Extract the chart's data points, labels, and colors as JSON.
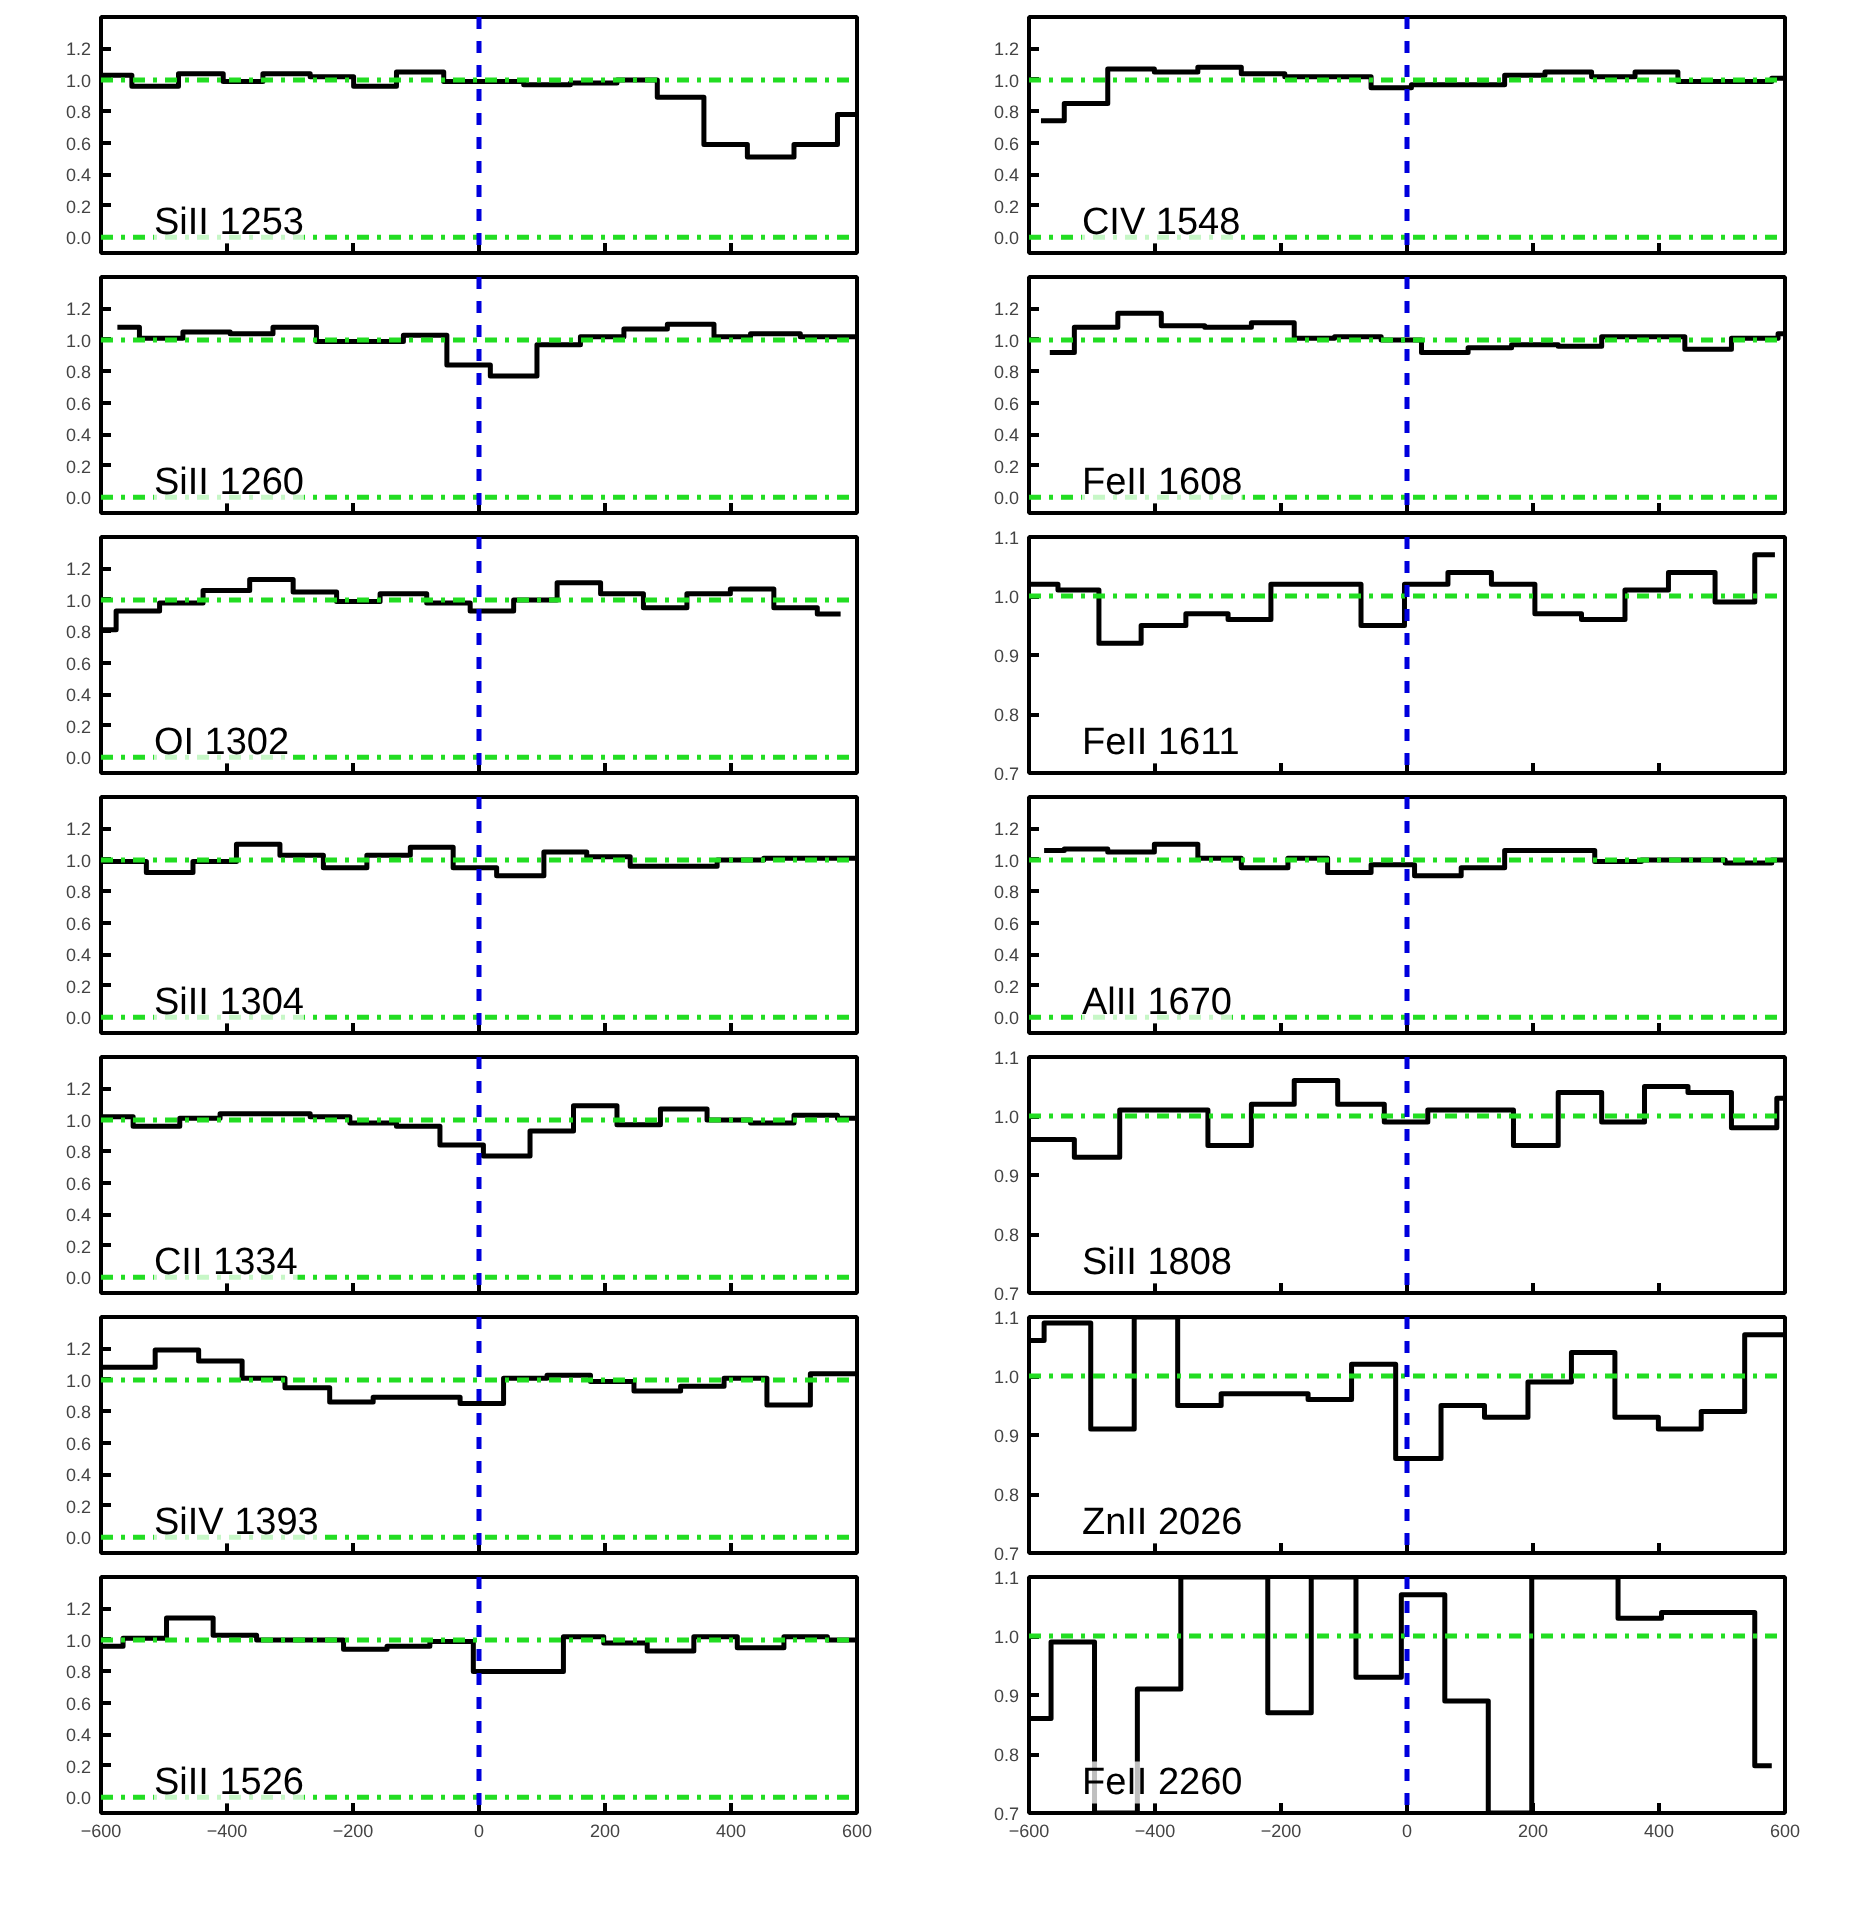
{
  "chart_data": [
    {
      "type": "step",
      "annotations": [
        "SiII 1253"
      ],
      "tick_labels": "y",
      "x": [
        -600,
        -551,
        -477,
        -406,
        -343,
        -268,
        -199,
        -131,
        -56,
        71,
        145,
        219,
        283,
        357,
        426,
        500,
        569,
        600
      ],
      "values": [
        1.03,
        0.96,
        1.04,
        0.99,
        1.04,
        1.02,
        0.96,
        1.05,
        0.99,
        0.97,
        0.98,
        1.0,
        0.89,
        0.59,
        0.51,
        0.59,
        0.78,
        0.78
      ],
      "color": "#000000",
      "xlim": [
        -600,
        600
      ],
      "xticks": [
        -600,
        -400,
        -200,
        0,
        200,
        400,
        600
      ],
      "ylim": [
        -0.1,
        1.4
      ],
      "yticks": [
        {
          "value": 0,
          "label": "0.0"
        },
        {
          "value": 0.2,
          "label": "0.2"
        },
        {
          "value": 0.4,
          "label": "0.4"
        },
        {
          "value": 0.6,
          "label": "0.6"
        },
        {
          "value": 0.8,
          "label": "0.8"
        },
        {
          "value": 1,
          "label": "1.0"
        },
        {
          "value": 1.2,
          "label": "1.2"
        }
      ],
      "ref_lines": [
        {
          "axis": "y",
          "value": 0,
          "color": "#22dd22",
          "line_style": "dashdot"
        },
        {
          "axis": "y",
          "value": 1,
          "color": "#22dd22",
          "line_style": "dashdot"
        },
        {
          "axis": "x",
          "value": 0,
          "color": "#0000dd",
          "line_style": "dashed"
        }
      ]
    },
    {
      "type": "step",
      "annotations": [
        "CIV 1548"
      ],
      "tick_labels": "y",
      "x": [
        -581,
        -544,
        -475,
        -401,
        -332,
        -263,
        -194,
        -57,
        7,
        155,
        219,
        293,
        362,
        430,
        579,
        600
      ],
      "values": [
        0.74,
        0.85,
        1.07,
        1.05,
        1.08,
        1.04,
        1.02,
        0.95,
        0.97,
        1.03,
        1.05,
        1.02,
        1.05,
        0.99,
        1.01,
        1.01
      ],
      "color": "#000000",
      "xlim": [
        -600,
        600
      ],
      "xticks": [
        -600,
        -400,
        -200,
        0,
        200,
        400,
        600
      ],
      "ylim": [
        -0.1,
        1.4
      ],
      "yticks": [
        {
          "value": 0,
          "label": "0.0"
        },
        {
          "value": 0.2,
          "label": "0.2"
        },
        {
          "value": 0.4,
          "label": "0.4"
        },
        {
          "value": 0.6,
          "label": "0.6"
        },
        {
          "value": 0.8,
          "label": "0.8"
        },
        {
          "value": 1,
          "label": "1.0"
        },
        {
          "value": 1.2,
          "label": "1.2"
        }
      ],
      "ref_lines": [
        {
          "axis": "y",
          "value": 0,
          "color": "#22dd22",
          "line_style": "dashdot"
        },
        {
          "axis": "y",
          "value": 1,
          "color": "#22dd22",
          "line_style": "dashdot"
        },
        {
          "axis": "x",
          "value": 0,
          "color": "#0000dd",
          "line_style": "dashed"
        }
      ]
    },
    {
      "type": "step",
      "annotations": [
        "SiII 1260"
      ],
      "tick_labels": "y",
      "x": [
        -574,
        -539,
        -470,
        -395,
        -327,
        -258,
        -120,
        -51,
        18,
        92,
        161,
        230,
        299,
        373,
        431,
        510,
        600
      ],
      "values": [
        1.08,
        1.01,
        1.05,
        1.04,
        1.08,
        0.99,
        1.03,
        0.84,
        0.77,
        0.97,
        1.02,
        1.07,
        1.1,
        1.02,
        1.04,
        1.02,
        1.02
      ],
      "color": "#000000",
      "xlim": [
        -600,
        600
      ],
      "xticks": [
        -600,
        -400,
        -200,
        0,
        200,
        400,
        600
      ],
      "ylim": [
        -0.1,
        1.4
      ],
      "yticks": [
        {
          "value": 0,
          "label": "0.0"
        },
        {
          "value": 0.2,
          "label": "0.2"
        },
        {
          "value": 0.4,
          "label": "0.4"
        },
        {
          "value": 0.6,
          "label": "0.6"
        },
        {
          "value": 0.8,
          "label": "0.8"
        },
        {
          "value": 1,
          "label": "1.0"
        },
        {
          "value": 1.2,
          "label": "1.2"
        }
      ],
      "ref_lines": [
        {
          "axis": "y",
          "value": 0,
          "color": "#22dd22",
          "line_style": "dashdot"
        },
        {
          "axis": "y",
          "value": 1,
          "color": "#22dd22",
          "line_style": "dashdot"
        },
        {
          "axis": "x",
          "value": 0,
          "color": "#0000dd",
          "line_style": "dashed"
        }
      ]
    },
    {
      "type": "step",
      "annotations": [
        "FeII 1608"
      ],
      "tick_labels": "y",
      "x": [
        -567,
        -528,
        -459,
        -390,
        -321,
        -247,
        -179,
        -115,
        -41,
        23,
        97,
        166,
        240,
        309,
        441,
        515,
        589,
        600
      ],
      "values": [
        0.92,
        1.08,
        1.17,
        1.09,
        1.08,
        1.11,
        1.01,
        1.02,
        1.0,
        0.92,
        0.95,
        0.97,
        0.96,
        1.02,
        0.94,
        1.01,
        1.04,
        1.04
      ],
      "color": "#000000",
      "xlim": [
        -600,
        600
      ],
      "xticks": [
        -600,
        -400,
        -200,
        0,
        200,
        400,
        600
      ],
      "ylim": [
        -0.1,
        1.4
      ],
      "yticks": [
        {
          "value": 0,
          "label": "0.0"
        },
        {
          "value": 0.2,
          "label": "0.2"
        },
        {
          "value": 0.4,
          "label": "0.4"
        },
        {
          "value": 0.6,
          "label": "0.6"
        },
        {
          "value": 0.8,
          "label": "0.8"
        },
        {
          "value": 1,
          "label": "1.0"
        },
        {
          "value": 1.2,
          "label": "1.2"
        }
      ],
      "ref_lines": [
        {
          "axis": "y",
          "value": 0,
          "color": "#22dd22",
          "line_style": "dashdot"
        },
        {
          "axis": "y",
          "value": 1,
          "color": "#22dd22",
          "line_style": "dashdot"
        },
        {
          "axis": "x",
          "value": 0,
          "color": "#0000dd",
          "line_style": "dashed"
        }
      ]
    },
    {
      "type": "step",
      "annotations": [
        "OI 1302"
      ],
      "tick_labels": "y",
      "x": [
        -600,
        -576,
        -507,
        -438,
        -364,
        -295,
        -226,
        -157,
        -83,
        -14,
        55,
        124,
        193,
        261,
        330,
        399,
        468,
        537,
        574
      ],
      "values": [
        0.81,
        0.93,
        0.98,
        1.06,
        1.13,
        1.05,
        0.99,
        1.04,
        0.98,
        0.93,
        1.0,
        1.11,
        1.04,
        0.95,
        1.04,
        1.07,
        0.95,
        0.91,
        0.91
      ],
      "color": "#000000",
      "xlim": [
        -600,
        600
      ],
      "xticks": [
        -600,
        -400,
        -200,
        0,
        200,
        400,
        600
      ],
      "ylim": [
        -0.1,
        1.4
      ],
      "yticks": [
        {
          "value": 0,
          "label": "0.0"
        },
        {
          "value": 0.2,
          "label": "0.2"
        },
        {
          "value": 0.4,
          "label": "0.4"
        },
        {
          "value": 0.6,
          "label": "0.6"
        },
        {
          "value": 0.8,
          "label": "0.8"
        },
        {
          "value": 1,
          "label": "1.0"
        },
        {
          "value": 1.2,
          "label": "1.2"
        }
      ],
      "ref_lines": [
        {
          "axis": "y",
          "value": 0,
          "color": "#22dd22",
          "line_style": "dashdot"
        },
        {
          "axis": "y",
          "value": 1,
          "color": "#22dd22",
          "line_style": "dashdot"
        },
        {
          "axis": "x",
          "value": 0,
          "color": "#0000dd",
          "line_style": "dashed"
        }
      ]
    },
    {
      "type": "step",
      "annotations": [
        "FeII 1611"
      ],
      "tick_labels": "y",
      "x": [
        -600,
        -554,
        -489,
        -422,
        -351,
        -284,
        -216,
        -73,
        -4,
        65,
        134,
        203,
        277,
        346,
        415,
        489,
        552,
        584
      ],
      "values": [
        1.02,
        1.01,
        0.92,
        0.95,
        0.97,
        0.96,
        1.02,
        0.95,
        1.02,
        1.04,
        1.02,
        0.97,
        0.96,
        1.01,
        1.04,
        0.99,
        1.07,
        1.07
      ],
      "color": "#000000",
      "xlim": [
        -600,
        600
      ],
      "xticks": [
        -600,
        -400,
        -200,
        0,
        200,
        400,
        600
      ],
      "ylim": [
        0.7,
        1.1
      ],
      "yticks": [
        {
          "value": 0.7,
          "label": "0.7"
        },
        {
          "value": 0.8,
          "label": "0.8"
        },
        {
          "value": 0.9,
          "label": "0.9"
        },
        {
          "value": 1,
          "label": "1.0"
        },
        {
          "value": 1.1,
          "label": "1.1"
        }
      ],
      "ref_lines": [
        {
          "axis": "y",
          "value": 1,
          "color": "#22dd22",
          "line_style": "dashdot"
        },
        {
          "axis": "x",
          "value": 0,
          "color": "#0000dd",
          "line_style": "dashed"
        }
      ]
    },
    {
      "type": "step",
      "annotations": [
        "SiII 1304"
      ],
      "tick_labels": "y",
      "x": [
        -600,
        -528,
        -454,
        -385,
        -316,
        -247,
        -178,
        -109,
        -41,
        28,
        103,
        171,
        240,
        378,
        452,
        600
      ],
      "values": [
        0.99,
        0.92,
        0.99,
        1.1,
        1.03,
        0.95,
        1.03,
        1.08,
        0.95,
        0.9,
        1.05,
        1.02,
        0.96,
        1.0,
        1.01,
        1.01
      ],
      "color": "#000000",
      "xlim": [
        -600,
        600
      ],
      "xticks": [
        -600,
        -400,
        -200,
        0,
        200,
        400,
        600
      ],
      "ylim": [
        -0.1,
        1.4
      ],
      "yticks": [
        {
          "value": 0,
          "label": "0.0"
        },
        {
          "value": 0.2,
          "label": "0.2"
        },
        {
          "value": 0.4,
          "label": "0.4"
        },
        {
          "value": 0.6,
          "label": "0.6"
        },
        {
          "value": 0.8,
          "label": "0.8"
        },
        {
          "value": 1,
          "label": "1.0"
        },
        {
          "value": 1.2,
          "label": "1.2"
        }
      ],
      "ref_lines": [
        {
          "axis": "y",
          "value": 0,
          "color": "#22dd22",
          "line_style": "dashdot"
        },
        {
          "axis": "y",
          "value": 1,
          "color": "#22dd22",
          "line_style": "dashdot"
        },
        {
          "axis": "x",
          "value": 0,
          "color": "#0000dd",
          "line_style": "dashed"
        }
      ]
    },
    {
      "type": "step",
      "annotations": [
        "AlII 1670"
      ],
      "tick_labels": "y",
      "x": [
        -576,
        -544,
        -475,
        -401,
        -332,
        -263,
        -189,
        -126,
        -57,
        12,
        86,
        155,
        298,
        372,
        436,
        505,
        579,
        600
      ],
      "values": [
        1.06,
        1.07,
        1.05,
        1.1,
        1.01,
        0.95,
        1.01,
        0.92,
        0.97,
        0.9,
        0.95,
        1.06,
        0.99,
        1.0,
        1.0,
        0.98,
        1.0,
        1.0
      ],
      "color": "#000000",
      "xlim": [
        -600,
        600
      ],
      "xticks": [
        -600,
        -400,
        -200,
        0,
        200,
        400,
        600
      ],
      "ylim": [
        -0.1,
        1.4
      ],
      "yticks": [
        {
          "value": 0,
          "label": "0.0"
        },
        {
          "value": 0.2,
          "label": "0.2"
        },
        {
          "value": 0.4,
          "label": "0.4"
        },
        {
          "value": 0.6,
          "label": "0.6"
        },
        {
          "value": 0.8,
          "label": "0.8"
        },
        {
          "value": 1,
          "label": "1.0"
        },
        {
          "value": 1.2,
          "label": "1.2"
        }
      ],
      "ref_lines": [
        {
          "axis": "y",
          "value": 0,
          "color": "#22dd22",
          "line_style": "dashdot"
        },
        {
          "axis": "y",
          "value": 1,
          "color": "#22dd22",
          "line_style": "dashdot"
        },
        {
          "axis": "x",
          "value": 0,
          "color": "#0000dd",
          "line_style": "dashed"
        }
      ]
    },
    {
      "type": "step",
      "annotations": [
        "CII 1334"
      ],
      "tick_labels": "y",
      "x": [
        -600,
        -549,
        -475,
        -411,
        -268,
        -205,
        -131,
        -62,
        7,
        81,
        150,
        219,
        288,
        362,
        431,
        500,
        569,
        600
      ],
      "values": [
        1.02,
        0.96,
        1.01,
        1.04,
        1.02,
        0.98,
        0.96,
        0.84,
        0.77,
        0.93,
        1.09,
        0.97,
        1.07,
        1.0,
        0.98,
        1.03,
        1.01,
        1.01
      ],
      "color": "#000000",
      "xlim": [
        -600,
        600
      ],
      "xticks": [
        -600,
        -400,
        -200,
        0,
        200,
        400,
        600
      ],
      "ylim": [
        -0.1,
        1.4
      ],
      "yticks": [
        {
          "value": 0,
          "label": "0.0"
        },
        {
          "value": 0.2,
          "label": "0.2"
        },
        {
          "value": 0.4,
          "label": "0.4"
        },
        {
          "value": 0.6,
          "label": "0.6"
        },
        {
          "value": 0.8,
          "label": "0.8"
        },
        {
          "value": 1,
          "label": "1.0"
        },
        {
          "value": 1.2,
          "label": "1.2"
        }
      ],
      "ref_lines": [
        {
          "axis": "y",
          "value": 0,
          "color": "#22dd22",
          "line_style": "dashdot"
        },
        {
          "axis": "y",
          "value": 1,
          "color": "#22dd22",
          "line_style": "dashdot"
        },
        {
          "axis": "x",
          "value": 0,
          "color": "#0000dd",
          "line_style": "dashed"
        }
      ]
    },
    {
      "type": "step",
      "annotations": [
        "SiII 1808"
      ],
      "tick_labels": "y",
      "x": [
        -600,
        -528,
        -456,
        -316,
        -247,
        -179,
        -110,
        -36,
        33,
        102,
        169,
        240,
        309,
        377,
        446,
        515,
        587,
        600
      ],
      "values": [
        0.96,
        0.93,
        1.01,
        0.95,
        1.02,
        1.06,
        1.02,
        0.99,
        1.01,
        1.01,
        0.95,
        1.04,
        0.99,
        1.05,
        1.04,
        0.98,
        1.03,
        1.03
      ],
      "color": "#000000",
      "xlim": [
        -600,
        600
      ],
      "xticks": [
        -600,
        -400,
        -200,
        0,
        200,
        400,
        600
      ],
      "ylim": [
        0.7,
        1.1
      ],
      "yticks": [
        {
          "value": 0.7,
          "label": "0.7"
        },
        {
          "value": 0.8,
          "label": "0.8"
        },
        {
          "value": 0.9,
          "label": "0.9"
        },
        {
          "value": 1,
          "label": "1.0"
        },
        {
          "value": 1.1,
          "label": "1.1"
        }
      ],
      "ref_lines": [
        {
          "axis": "y",
          "value": 1,
          "color": "#22dd22",
          "line_style": "dashdot"
        },
        {
          "axis": "x",
          "value": 0,
          "color": "#0000dd",
          "line_style": "dashed"
        }
      ]
    },
    {
      "type": "step",
      "annotations": [
        "SiIV 1393"
      ],
      "tick_labels": "y",
      "x": [
        -600,
        -514,
        -445,
        -376,
        -308,
        -237,
        -168,
        -30,
        39,
        108,
        177,
        246,
        320,
        389,
        457,
        526,
        600
      ],
      "values": [
        1.08,
        1.19,
        1.12,
        1.01,
        0.95,
        0.86,
        0.89,
        0.85,
        1.01,
        1.03,
        0.99,
        0.93,
        0.96,
        1.01,
        0.84,
        1.04,
        1.04
      ],
      "color": "#000000",
      "xlim": [
        -600,
        600
      ],
      "xticks": [
        -600,
        -400,
        -200,
        0,
        200,
        400,
        600
      ],
      "ylim": [
        -0.1,
        1.4
      ],
      "yticks": [
        {
          "value": 0,
          "label": "0.0"
        },
        {
          "value": 0.2,
          "label": "0.2"
        },
        {
          "value": 0.4,
          "label": "0.4"
        },
        {
          "value": 0.6,
          "label": "0.6"
        },
        {
          "value": 0.8,
          "label": "0.8"
        },
        {
          "value": 1,
          "label": "1.0"
        },
        {
          "value": 1.2,
          "label": "1.2"
        }
      ],
      "ref_lines": [
        {
          "axis": "y",
          "value": 0,
          "color": "#22dd22",
          "line_style": "dashdot"
        },
        {
          "axis": "y",
          "value": 1,
          "color": "#22dd22",
          "line_style": "dashdot"
        },
        {
          "axis": "x",
          "value": 0,
          "color": "#0000dd",
          "line_style": "dashed"
        }
      ]
    },
    {
      "type": "step",
      "annotations": [
        "ZnII 2026"
      ],
      "tick_labels": "y",
      "x": [
        -600,
        -576,
        -502,
        -433,
        -364,
        -295,
        -157,
        -88,
        -18,
        54,
        123,
        192,
        261,
        330,
        399,
        467,
        536,
        600
      ],
      "values": [
        1.06,
        1.09,
        0.91,
        1.1,
        0.95,
        0.97,
        0.96,
        1.02,
        0.86,
        0.95,
        0.93,
        0.99,
        1.04,
        0.93,
        0.91,
        0.94,
        1.07,
        1.07
      ],
      "color": "#000000",
      "xlim": [
        -600,
        600
      ],
      "xticks": [
        -600,
        -400,
        -200,
        0,
        200,
        400,
        600
      ],
      "ylim": [
        0.7,
        1.1
      ],
      "yticks": [
        {
          "value": 0.7,
          "label": "0.7"
        },
        {
          "value": 0.8,
          "label": "0.8"
        },
        {
          "value": 0.9,
          "label": "0.9"
        },
        {
          "value": 1,
          "label": "1.0"
        },
        {
          "value": 1.1,
          "label": "1.1"
        }
      ],
      "ref_lines": [
        {
          "axis": "y",
          "value": 1,
          "color": "#22dd22",
          "line_style": "dashdot"
        },
        {
          "axis": "x",
          "value": 0,
          "color": "#0000dd",
          "line_style": "dashed"
        }
      ]
    },
    {
      "type": "step",
      "annotations": [
        "SiII 1526"
      ],
      "x": [
        -600,
        -565,
        -496,
        -422,
        -353,
        -215,
        -146,
        -78,
        -9,
        134,
        198,
        267,
        341,
        410,
        484,
        553,
        600
      ],
      "values": [
        0.96,
        1.01,
        1.14,
        1.03,
        1.0,
        0.94,
        0.96,
        0.99,
        0.8,
        1.02,
        0.98,
        0.93,
        1.02,
        0.95,
        1.02,
        1.0,
        1.0
      ],
      "color": "#000000",
      "xlim": [
        -600,
        600
      ],
      "xticks": [
        -600,
        -400,
        -200,
        0,
        200,
        400,
        600
      ],
      "ylim": [
        -0.1,
        1.4
      ],
      "yticks": [
        {
          "value": 0,
          "label": "0.0"
        },
        {
          "value": 0.2,
          "label": "0.2"
        },
        {
          "value": 0.4,
          "label": "0.4"
        },
        {
          "value": 0.6,
          "label": "0.6"
        },
        {
          "value": 0.8,
          "label": "0.8"
        },
        {
          "value": 1,
          "label": "1.0"
        },
        {
          "value": 1.2,
          "label": "1.2"
        }
      ],
      "ref_lines": [
        {
          "axis": "y",
          "value": 0,
          "color": "#22dd22",
          "line_style": "dashdot"
        },
        {
          "axis": "y",
          "value": 1,
          "color": "#22dd22",
          "line_style": "dashdot"
        },
        {
          "axis": "x",
          "value": 0,
          "color": "#0000dd",
          "line_style": "dashed"
        }
      ]
    },
    {
      "type": "step",
      "annotations": [
        "FeII 2260"
      ],
      "x": [
        -600,
        -565,
        -496,
        -428,
        -359,
        -221,
        -152,
        -81,
        -9,
        60,
        129,
        198,
        335,
        404,
        473,
        552,
        579
      ],
      "values": [
        0.86,
        0.99,
        0.7,
        0.91,
        1.1,
        0.87,
        1.1,
        0.93,
        1.07,
        0.89,
        0.7,
        1.1,
        1.03,
        1.04,
        1.04,
        0.78,
        0.78
      ],
      "color": "#000000",
      "xlim": [
        -600,
        600
      ],
      "xticks": [
        -600,
        -400,
        -200,
        0,
        200,
        400,
        600
      ],
      "ylim": [
        0.7,
        1.1
      ],
      "yticks": [
        {
          "value": 0.7,
          "label": "0.7"
        },
        {
          "value": 0.8,
          "label": "0.8"
        },
        {
          "value": 0.9,
          "label": "0.9"
        },
        {
          "value": 1,
          "label": "1.0"
        },
        {
          "value": 1.1,
          "label": "1.1"
        }
      ],
      "ref_lines": [
        {
          "axis": "y",
          "value": 1,
          "color": "#22dd22",
          "line_style": "dashdot"
        },
        {
          "axis": "x",
          "value": 0,
          "color": "#0000dd",
          "line_style": "dashed"
        }
      ]
    }
  ]
}
